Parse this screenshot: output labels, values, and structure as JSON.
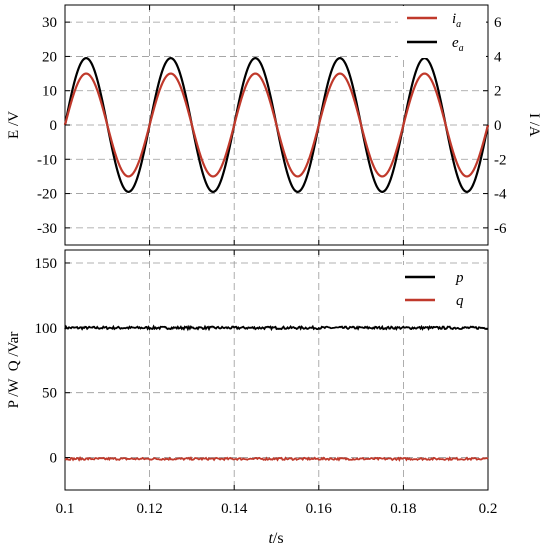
{
  "figure": {
    "xlabel_var": "t",
    "xlabel_unit": "/s"
  },
  "chart_data": [
    {
      "type": "line",
      "ylabel_left": "E /V",
      "ylabel_right": "I /A",
      "xlim": [
        0.1,
        0.2
      ],
      "ylim_left": [
        -35,
        35
      ],
      "ylim_right": [
        -7,
        7
      ],
      "xticks": [
        "0.1",
        "0.12",
        "0.14",
        "0.16",
        "0.18",
        "0.2"
      ],
      "yticks_left": [
        "30",
        "20",
        "10",
        "0",
        "-10",
        "-20",
        "-30"
      ],
      "yticks_right": [
        "6",
        "4",
        "2",
        "0",
        "-2",
        "-4",
        "-6"
      ],
      "grid": true,
      "legend_position": "top-right",
      "series": [
        {
          "name": "i",
          "subscript": "a",
          "axis": "right",
          "color": "#c0392b",
          "frequency_hz": 50,
          "amplitude": 3,
          "phase": "sine"
        },
        {
          "name": "e",
          "subscript": "a",
          "axis": "left",
          "color": "#000000",
          "frequency_hz": 50,
          "amplitude": 19.5,
          "phase": "sine"
        }
      ]
    },
    {
      "type": "line",
      "ylabel": "P /W  Q /Var",
      "xlim": [
        0.1,
        0.2
      ],
      "ylim": [
        -25,
        160
      ],
      "xticks": [
        "0.1",
        "0.12",
        "0.14",
        "0.16",
        "0.18",
        "0.2"
      ],
      "yticks": [
        "150",
        "100",
        "50",
        "0"
      ],
      "grid": true,
      "legend_position": "top-right",
      "series": [
        {
          "name": "p",
          "color": "#000000",
          "mean": 100,
          "ripple": 1
        },
        {
          "name": "q",
          "color": "#c0392b",
          "mean": -1,
          "ripple": 0.8
        }
      ]
    }
  ]
}
